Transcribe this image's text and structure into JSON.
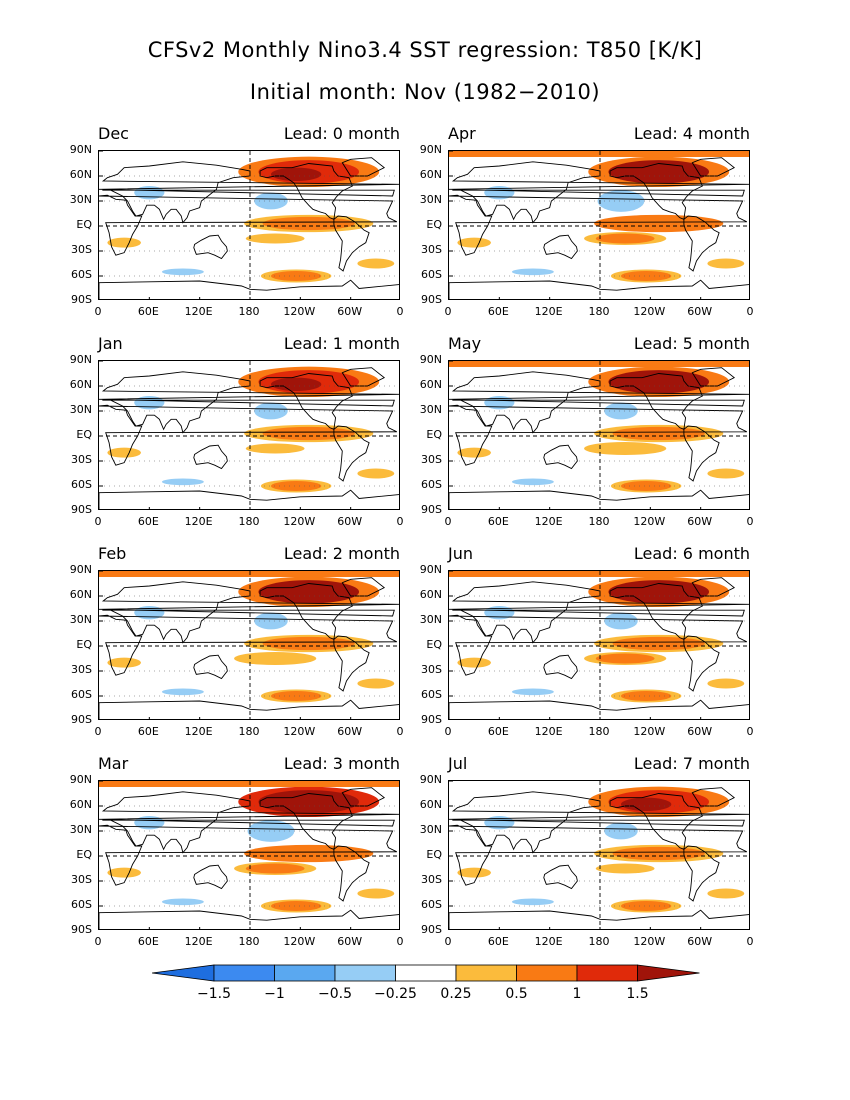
{
  "title": "CFSv2 Monthly Nino3.4 SST regression: T850 [K/K]",
  "subtitle": "Initial month: Nov (1982−2010)",
  "lat_labels": [
    "90N",
    "60N",
    "30N",
    "EQ",
    "30S",
    "60S",
    "90S"
  ],
  "lon_labels": [
    "0",
    "60E",
    "120E",
    "180",
    "120W",
    "60W",
    "0"
  ],
  "panels": [
    {
      "month": "Dec",
      "lead": "Lead: 0 month",
      "level": 1.0
    },
    {
      "month": "Jan",
      "lead": "Lead: 1 month",
      "level": 1.1
    },
    {
      "month": "Feb",
      "lead": "Lead: 2 month",
      "level": 1.2
    },
    {
      "month": "Mar",
      "lead": "Lead: 3 month",
      "level": 1.4
    },
    {
      "month": "Apr",
      "lead": "Lead: 4 month",
      "level": 1.3
    },
    {
      "month": "May",
      "lead": "Lead: 5 month",
      "level": 1.2
    },
    {
      "month": "Jun",
      "lead": "Lead: 6 month",
      "level": 1.25
    },
    {
      "month": "Jul",
      "lead": "Lead: 7 month",
      "level": 0.9
    }
  ],
  "colorbar": {
    "labels": [
      "−1.5",
      "−1",
      "−0.5",
      "−0.25",
      "0.25",
      "0.5",
      "1",
      "1.5"
    ],
    "colors": [
      "#1e6ee0",
      "#3c8af0",
      "#5aa8f0",
      "#96cdf5",
      "#ffffff",
      "#fbbb3c",
      "#f97a14",
      "#e02a0a",
      "#a0140a"
    ]
  }
}
